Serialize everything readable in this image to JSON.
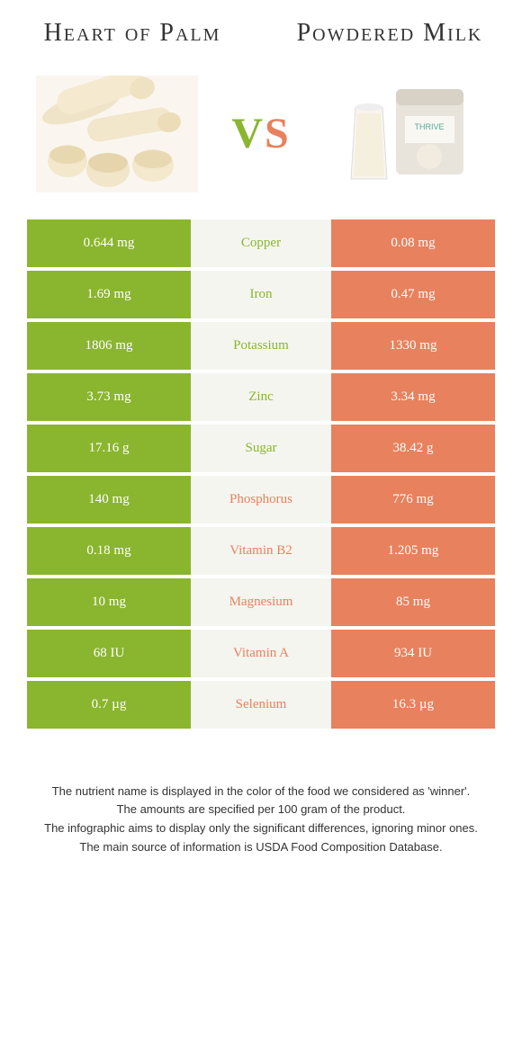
{
  "titles": {
    "left": "Heart of Palm",
    "right": "Powdered Milk"
  },
  "vs": {
    "v": "V",
    "s": "S"
  },
  "colors": {
    "left": "#8ab52f",
    "right": "#e8815d",
    "mid_bg": "#f5f5f0"
  },
  "rows": [
    {
      "left": "0.644 mg",
      "label": "Copper",
      "right": "0.08 mg",
      "winner": "left"
    },
    {
      "left": "1.69 mg",
      "label": "Iron",
      "right": "0.47 mg",
      "winner": "left"
    },
    {
      "left": "1806 mg",
      "label": "Potassium",
      "right": "1330 mg",
      "winner": "left"
    },
    {
      "left": "3.73 mg",
      "label": "Zinc",
      "right": "3.34 mg",
      "winner": "left"
    },
    {
      "left": "17.16 g",
      "label": "Sugar",
      "right": "38.42 g",
      "winner": "left"
    },
    {
      "left": "140 mg",
      "label": "Phosphorus",
      "right": "776 mg",
      "winner": "right"
    },
    {
      "left": "0.18 mg",
      "label": "Vitamin B2",
      "right": "1.205 mg",
      "winner": "right"
    },
    {
      "left": "10 mg",
      "label": "Magnesium",
      "right": "85 mg",
      "winner": "right"
    },
    {
      "left": "68 IU",
      "label": "Vitamin A",
      "right": "934 IU",
      "winner": "right"
    },
    {
      "left": "0.7 µg",
      "label": "Selenium",
      "right": "16.3 µg",
      "winner": "right"
    }
  ],
  "footer": {
    "line1": "The nutrient name is displayed in the color of the food we considered as 'winner'.",
    "line2": "The amounts are specified per 100 gram of the product.",
    "line3": "The infographic aims to display only the significant differences, ignoring minor ones.",
    "line4": "The main source of information is USDA Food Composition Database."
  }
}
